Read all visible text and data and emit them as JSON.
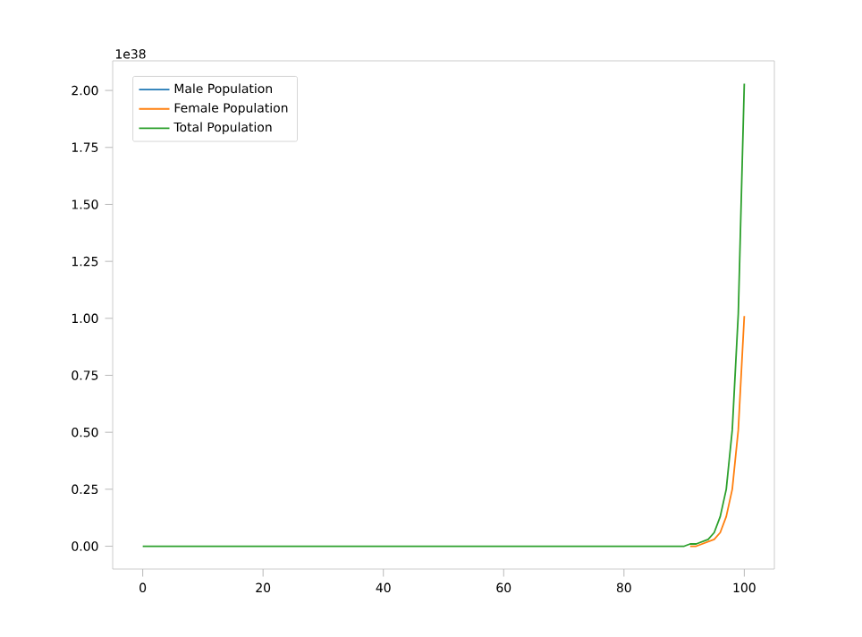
{
  "chart_data": {
    "type": "line",
    "x": [
      0,
      10,
      20,
      30,
      40,
      50,
      60,
      70,
      80,
      85,
      88,
      90,
      91,
      92,
      93,
      94,
      95,
      96,
      97,
      98,
      99,
      100
    ],
    "series": [
      {
        "name": "Male Population",
        "color": "#1f77b4",
        "values": [
          null,
          null,
          null,
          null,
          null,
          null,
          null,
          null,
          null,
          null,
          null,
          null,
          null,
          null,
          null,
          null,
          null,
          null,
          null,
          null,
          null,
          null
        ]
      },
      {
        "name": "Female Population",
        "color": "#ff7f0e",
        "values": [
          null,
          null,
          null,
          null,
          null,
          null,
          null,
          null,
          null,
          null,
          null,
          null,
          0,
          0,
          0.01,
          0.02,
          0.03,
          0.06,
          0.13,
          0.25,
          0.51,
          1.01
        ]
      },
      {
        "name": "Total Population",
        "color": "#2ca02c",
        "values": [
          0,
          0,
          0,
          0,
          0,
          0,
          0,
          0,
          0,
          0,
          0,
          0,
          0.01,
          0.01,
          0.02,
          0.03,
          0.06,
          0.13,
          0.25,
          0.51,
          1.02,
          2.03
        ]
      }
    ],
    "xlim": [
      -5,
      105
    ],
    "ylim": [
      -0.1,
      2.13
    ],
    "xticks": [
      0,
      20,
      40,
      60,
      80,
      100
    ],
    "yticks": [
      {
        "value": 0,
        "label": "0.00"
      },
      {
        "value": 0.25,
        "label": "0.25"
      },
      {
        "value": 0.5,
        "label": "0.50"
      },
      {
        "value": 0.75,
        "label": "0.75"
      },
      {
        "value": 1,
        "label": "1.00"
      },
      {
        "value": 1.25,
        "label": "1.25"
      },
      {
        "value": 1.5,
        "label": "1.50"
      },
      {
        "value": 1.75,
        "label": "1.75"
      },
      {
        "value": 2,
        "label": "2.00"
      }
    ],
    "annotations": [
      "1e38"
    ],
    "legend": "top left"
  }
}
